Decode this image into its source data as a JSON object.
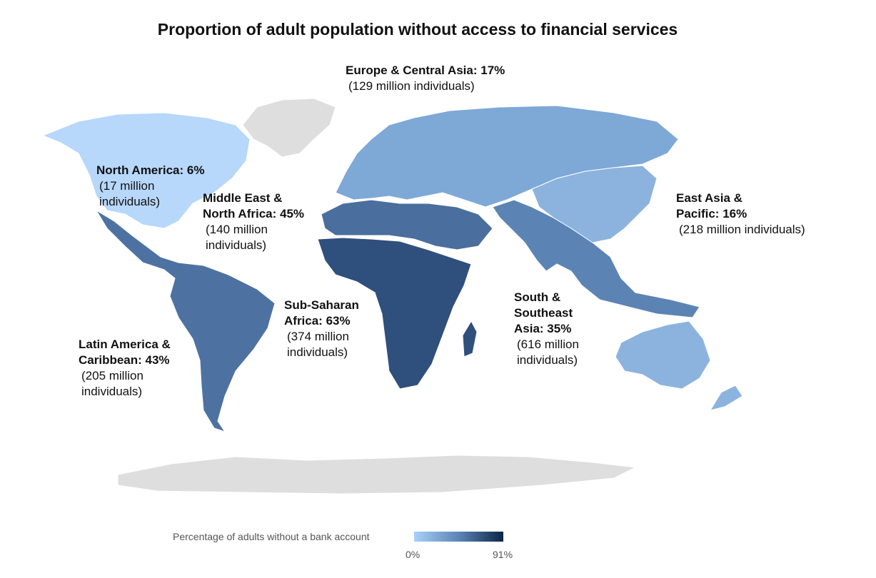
{
  "title": "Proportion of adult population without access to financial services",
  "regions": [
    {
      "id": "europe-central-asia",
      "name": "Europe & Central Asia: 17%",
      "individuals": "(129 million  individuals)",
      "percent": 17,
      "color": "#7ea8d6"
    },
    {
      "id": "north-america",
      "name": "North America: 6%",
      "individuals": "(17 million\nindividuals)",
      "percent": 6,
      "color": "#b7d7fb"
    },
    {
      "id": "middle-east-north-africa",
      "name": "Middle East &\nNorth Africa: 45%",
      "individuals": "(140 million\nindividuals)",
      "percent": 45,
      "color": "#4a6e9d"
    },
    {
      "id": "east-asia-pacific",
      "name": "East Asia &\nPacific: 16%",
      "individuals": "(218 million  individuals)",
      "percent": 16,
      "color": "#8cb3de"
    },
    {
      "id": "sub-saharan-africa",
      "name": "Sub-Saharan\nAfrica: 63%",
      "individuals": "(374 million\nindividuals)",
      "percent": 63,
      "color": "#2f4f7d"
    },
    {
      "id": "south-southeast-asia",
      "name": "South &\nSoutheast\nAsia: 35%",
      "individuals": "(616 million\nindividuals)",
      "percent": 35,
      "color": "#5b84b4"
    },
    {
      "id": "latin-america-caribbean",
      "name": "Latin America &\nCaribbean: 43%",
      "individuals": "(205 million\nindividuals)",
      "percent": 43,
      "color": "#4d72a2"
    }
  ],
  "legend": {
    "title": "Percentage of adults without a bank account",
    "min_label": "0%",
    "max_label": "91%",
    "min_value": 0,
    "max_value": 91,
    "colors": [
      "#a9d0fb",
      "#0b2547"
    ]
  },
  "no_data_color": "#dedede"
}
